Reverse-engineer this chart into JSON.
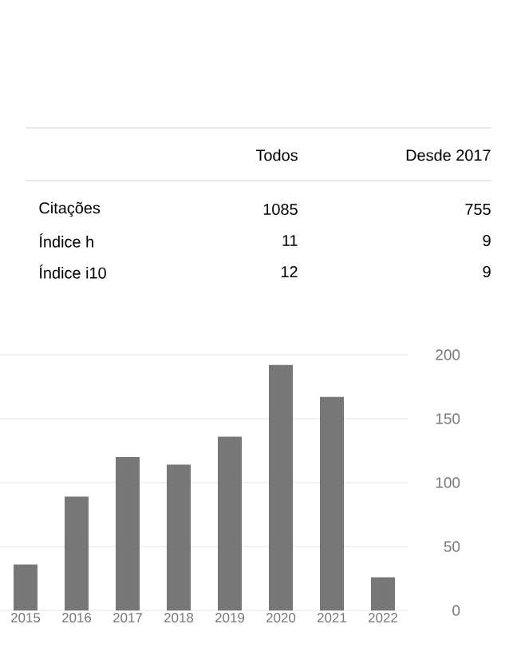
{
  "chart_data": {
    "type": "bar",
    "categories": [
      "2015",
      "2016",
      "2017",
      "2018",
      "2019",
      "2020",
      "2021",
      "2022"
    ],
    "values": [
      36,
      89,
      120,
      114,
      136,
      192,
      167,
      26
    ],
    "color": "#777777",
    "ylim": [
      0,
      200
    ],
    "yticks": [
      0,
      50,
      100,
      150,
      200
    ],
    "grid": "y",
    "annotations": [
      "Todos",
      "Desde 2017",
      "Citações",
      "1085",
      "755",
      "Índice h",
      "11",
      "9",
      "Índice i10",
      "12",
      "9"
    ]
  }
}
